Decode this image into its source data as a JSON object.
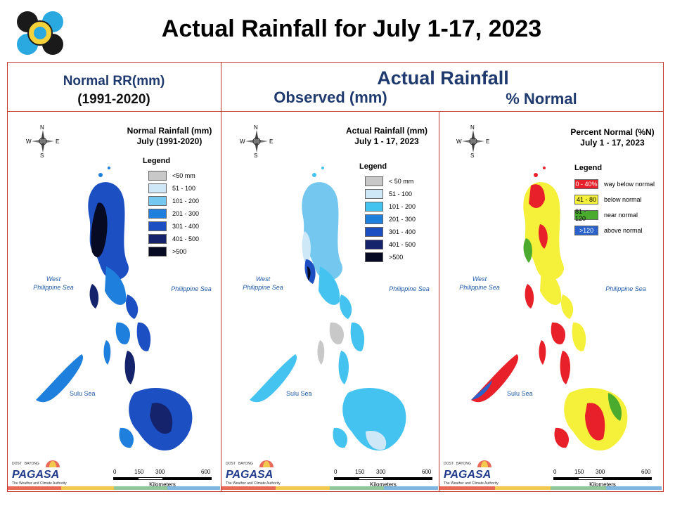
{
  "slide_title": "Actual Rainfall for July 1-17, 2023",
  "header": {
    "left_line1": "Normal RR(mm)",
    "left_line2": "(1991-2020)",
    "center_top": "Actual Rainfall",
    "center_left": "Observed (mm)",
    "center_right": "% Normal"
  },
  "maps": [
    {
      "title_line1": "Normal Rainfall (mm)",
      "title_line2": "July (1991-2020)",
      "legend_title": "Legend",
      "legend": [
        {
          "label": "<50 mm",
          "color": "#c8c8c8"
        },
        {
          "label": "51 - 100",
          "color": "#cfe8f7"
        },
        {
          "label": "101 - 200",
          "color": "#74c8ef"
        },
        {
          "label": "201 - 300",
          "color": "#1e7fdc"
        },
        {
          "label": "301 - 400",
          "color": "#1b4fc2"
        },
        {
          "label": "401 - 500",
          "color": "#14236b"
        },
        {
          "label": ">500",
          "color": "#060a22"
        }
      ],
      "sea_west_1": "West",
      "sea_west_2": "Philippine Sea",
      "sea_east": "Philippine Sea",
      "sea_south": "Sulu Sea"
    },
    {
      "title_line1": "Actual Rainfall (mm)",
      "title_line2": "July 1 - 17, 2023",
      "legend_title": "Legend",
      "legend": [
        {
          "label": "< 50 mm",
          "color": "#c8c8c8"
        },
        {
          "label": "51 - 100",
          "color": "#cfe8f7"
        },
        {
          "label": "101 - 200",
          "color": "#45c3f0"
        },
        {
          "label": "201 - 300",
          "color": "#1e7fdc"
        },
        {
          "label": "301 - 400",
          "color": "#1b4fc2"
        },
        {
          "label": "401 - 500",
          "color": "#14236b"
        },
        {
          "label": ">500",
          "color": "#060a22"
        }
      ],
      "sea_west_1": "West",
      "sea_west_2": "Philippine Sea",
      "sea_east": "Philippine Sea",
      "sea_south": "Sulu Sea"
    },
    {
      "title_line1": "Percent Normal (%N)",
      "title_line2": "July 1 - 17, 2023",
      "legend_title": "Legend",
      "legend": [
        {
          "range": "0 - 40%",
          "label": "way below normal",
          "color": "#e8202a"
        },
        {
          "range": "41 - 80",
          "label": "below normal",
          "color": "#f5f03a"
        },
        {
          "range": "81 - 120",
          "label": "near normal",
          "color": "#4bab2f"
        },
        {
          "range": ">120",
          "label": "above normal",
          "color": "#2a62c9"
        }
      ],
      "sea_west_1": "West",
      "sea_west_2": "Philippine Sea",
      "sea_east": "Philippine Sea",
      "sea_south": "Sulu Sea"
    }
  ],
  "compass": {
    "n": "N",
    "s": "S",
    "e": "E",
    "w": "W"
  },
  "scale": {
    "ticks": [
      "0",
      "150",
      "300",
      "600"
    ],
    "unit": "Kilometers"
  },
  "branding": {
    "org": "PAGASA",
    "tag_top": "DOST",
    "tag_mid": "BAYONG",
    "tagline": "The Weather and Climate Authority"
  },
  "footer_colors": [
    "#e8685a",
    "#f2c94c",
    "#8fc79b",
    "#7fb6e0"
  ]
}
